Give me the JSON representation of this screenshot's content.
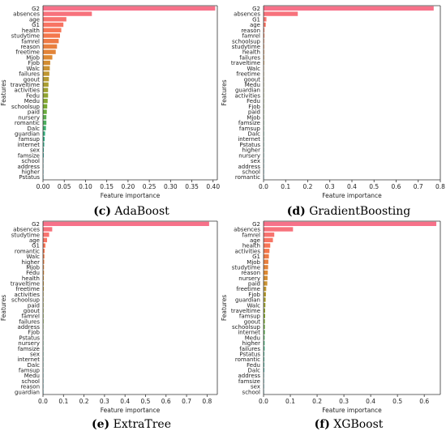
{
  "figure": {
    "panels": [
      {
        "letter": "(c)",
        "caption": "AdaBoost",
        "xlabel": "Feature importance",
        "ylabel": "Features",
        "xticks": [
          "0.00",
          "0.05",
          "0.10",
          "0.15",
          "0.20",
          "0.25",
          "0.30",
          "0.35",
          "0.40"
        ]
      },
      {
        "letter": "(d)",
        "caption": "GradientBoosting",
        "xlabel": "Feature importance",
        "ylabel": "Features",
        "xticks": [
          "0.0",
          "0.1",
          "0.2",
          "0.3",
          "0.4",
          "0.5",
          "0.6",
          "0.7",
          "0.8"
        ]
      },
      {
        "letter": "(e)",
        "caption": "ExtraTree",
        "xlabel": "Feature importance",
        "ylabel": "Features",
        "xticks": [
          "0.0",
          "0.1",
          "0.2",
          "0.3",
          "0.4",
          "0.5",
          "0.6",
          "0.7",
          "0.8"
        ]
      },
      {
        "letter": "(f)",
        "caption": "XGBoost",
        "xlabel": "Feature importance",
        "ylabel": "Features",
        "xticks": [
          "0.0",
          "0.1",
          "0.2",
          "0.3",
          "0.4",
          "0.5",
          "0.6"
        ]
      }
    ]
  },
  "chart_data": [
    {
      "type": "bar",
      "orientation": "horizontal",
      "title": "(c) AdaBoost",
      "xlabel": "Feature importance",
      "ylabel": "Features",
      "xlim": [
        0,
        0.41
      ],
      "categories": [
        "G2",
        "absences",
        "age",
        "G1",
        "health",
        "studytime",
        "famrel",
        "reason",
        "freetime",
        "Mjob",
        "Fjob",
        "Walc",
        "failures",
        "goout",
        "traveltime",
        "activities",
        "Fedu",
        "Medu",
        "schoolsup",
        "paid",
        "nursery",
        "romantic",
        "Dalc",
        "guardian",
        "famsup",
        "internet",
        "sex",
        "famsize",
        "school",
        "address",
        "higher",
        "Pstatus"
      ],
      "values": [
        0.405,
        0.115,
        0.055,
        0.048,
        0.043,
        0.04,
        0.037,
        0.033,
        0.03,
        0.022,
        0.017,
        0.016,
        0.015,
        0.014,
        0.013,
        0.012,
        0.012,
        0.011,
        0.01,
        0.009,
        0.008,
        0.008,
        0.007,
        0.005,
        0.004,
        0.003,
        0.002,
        0.002,
        0.001,
        0.001,
        0.0005,
        0.0005
      ]
    },
    {
      "type": "bar",
      "orientation": "horizontal",
      "title": "(d) GradientBoosting",
      "xlabel": "Feature importance",
      "ylabel": "Features",
      "xlim": [
        0,
        0.8
      ],
      "categories": [
        "G2",
        "absences",
        "G1",
        "age",
        "reason",
        "famrel",
        "schoolsup",
        "studytime",
        "health",
        "failures",
        "traveltime",
        "Walc",
        "freetime",
        "goout",
        "Medu",
        "guardian",
        "activities",
        "Fedu",
        "Fjob",
        "paid",
        "Mjob",
        "famsize",
        "famsup",
        "Dalc",
        "internet",
        "Pstatus",
        "higher",
        "nursery",
        "sex",
        "address",
        "school",
        "romantic"
      ],
      "values": [
        0.77,
        0.155,
        0.013,
        0.01,
        0.004,
        0.004,
        0.003,
        0.003,
        0.003,
        0.003,
        0.003,
        0.002,
        0.002,
        0.002,
        0.002,
        0.002,
        0.002,
        0.002,
        0.002,
        0.002,
        0.001,
        0.001,
        0.001,
        0.001,
        0.001,
        0.001,
        0.001,
        0.001,
        0.0005,
        0.0005,
        0.0005,
        0.0005
      ]
    },
    {
      "type": "bar",
      "orientation": "horizontal",
      "title": "(e) ExtraTree",
      "xlabel": "Feature importance",
      "ylabel": "Features",
      "xlim": [
        0,
        0.85
      ],
      "categories": [
        "G2",
        "absences",
        "studytime",
        "age",
        "G1",
        "romantic",
        "Walc",
        "higher",
        "Mjob",
        "Fedu",
        "health",
        "traveltime",
        "freetime",
        "activities",
        "schoolsup",
        "paid",
        "goout",
        "famrel",
        "failures",
        "address",
        "Fjob",
        "Pstatus",
        "nursery",
        "famsize",
        "sex",
        "internet",
        "Dalc",
        "famsup",
        "Medu",
        "school",
        "reason",
        "guardian"
      ],
      "values": [
        0.81,
        0.045,
        0.03,
        0.02,
        0.012,
        0.008,
        0.007,
        0.006,
        0.005,
        0.005,
        0.004,
        0.004,
        0.004,
        0.003,
        0.003,
        0.003,
        0.003,
        0.003,
        0.003,
        0.002,
        0.002,
        0.002,
        0.002,
        0.002,
        0.002,
        0.002,
        0.001,
        0.001,
        0.001,
        0.001,
        0.001,
        0.001
      ]
    },
    {
      "type": "bar",
      "orientation": "horizontal",
      "title": "(f) XGBoost",
      "xlabel": "Feature importance",
      "ylabel": "Features",
      "xlim": [
        0,
        0.66
      ],
      "categories": [
        "G2",
        "absences",
        "famrel",
        "age",
        "health",
        "activities",
        "G1",
        "Mjob",
        "studytime",
        "reason",
        "nursery",
        "paid",
        "freetime",
        "Fjob",
        "guardian",
        "Walc",
        "traveltime",
        "famsup",
        "goout",
        "schoolsup",
        "internet",
        "Medu",
        "higher",
        "failures",
        "Pstatus",
        "romantic",
        "Fedu",
        "Dalc",
        "address",
        "famsize",
        "sex",
        "school"
      ],
      "values": [
        0.645,
        0.11,
        0.04,
        0.035,
        0.025,
        0.022,
        0.02,
        0.018,
        0.017,
        0.016,
        0.015,
        0.014,
        0.01,
        0.009,
        0.008,
        0.007,
        0.006,
        0.006,
        0.005,
        0.005,
        0.005,
        0.004,
        0.004,
        0.004,
        0.003,
        0.003,
        0.003,
        0.003,
        0.002,
        0.002,
        0.002,
        0.001
      ]
    }
  ]
}
